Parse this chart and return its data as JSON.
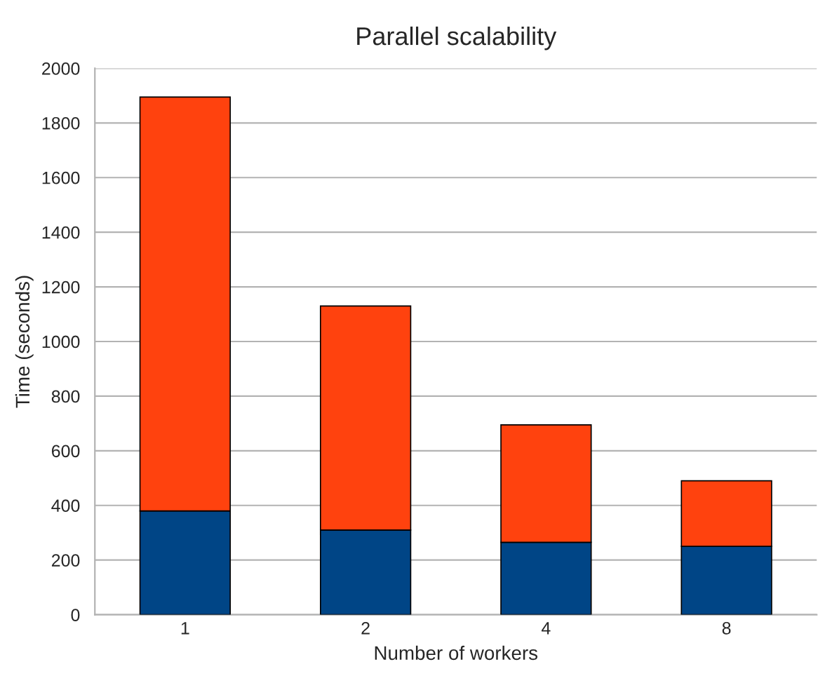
{
  "chart_data": {
    "type": "bar",
    "title": "Parallel scalability",
    "xlabel": "Number of workers",
    "ylabel": "Time (seconds)",
    "categories": [
      "1",
      "2",
      "4",
      "8"
    ],
    "stacked": true,
    "series": [
      {
        "color": "#004586",
        "values": [
          380,
          310,
          265,
          250
        ]
      },
      {
        "color": "#ff420e",
        "values": [
          1515,
          820,
          430,
          240
        ]
      }
    ],
    "ylim": [
      0,
      2000
    ],
    "yticks": [
      0,
      200,
      400,
      600,
      800,
      1000,
      1200,
      1400,
      1600,
      1800,
      2000
    ],
    "grid": "y"
  }
}
